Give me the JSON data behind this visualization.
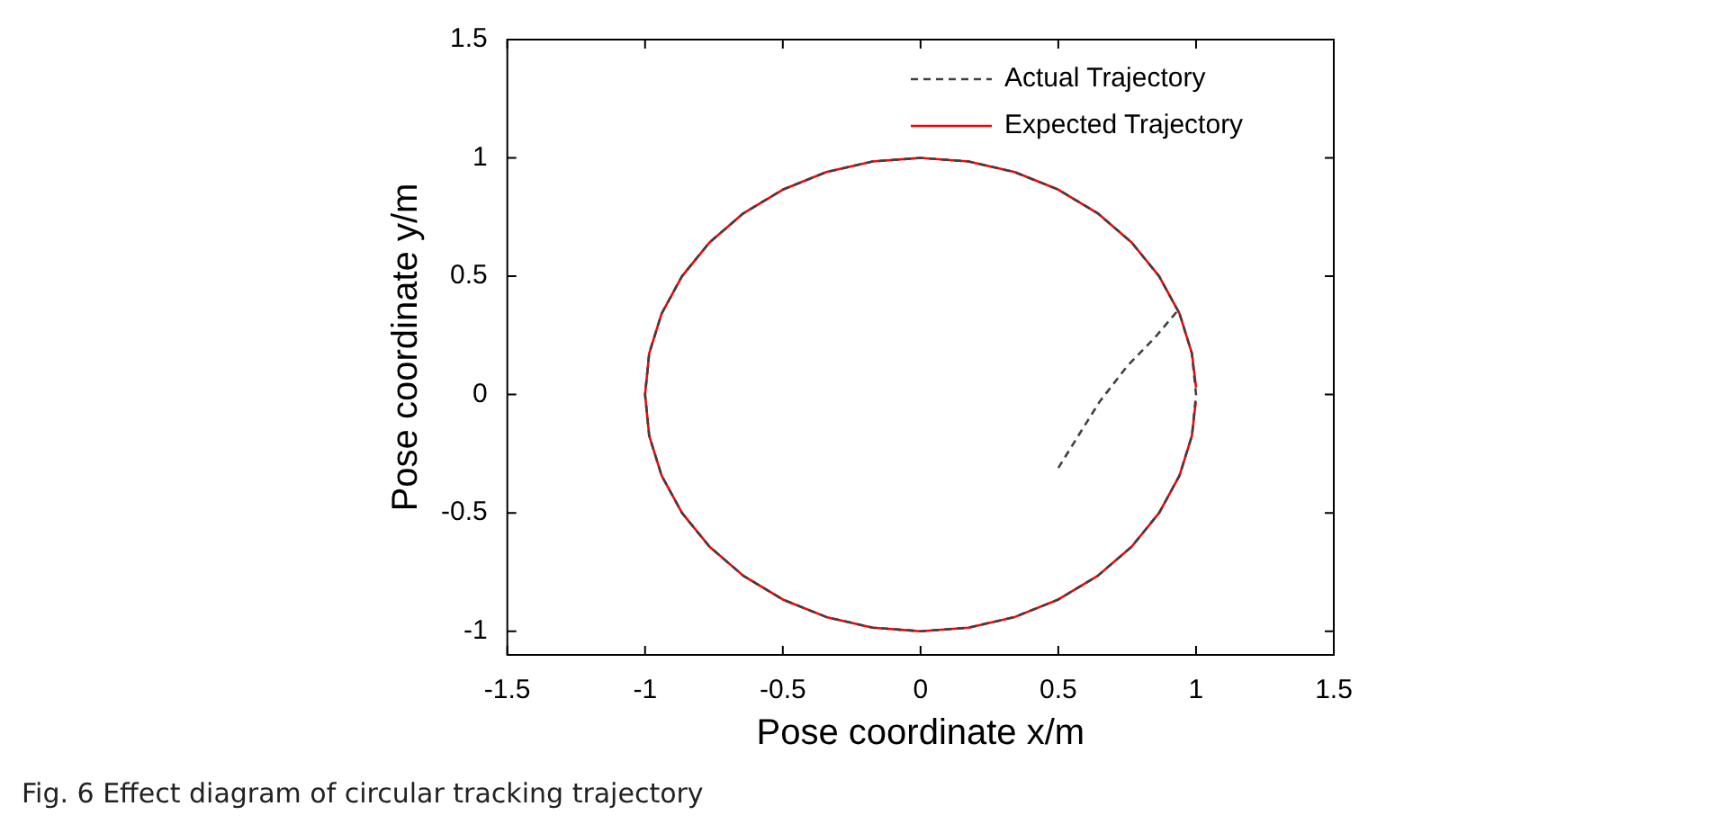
{
  "chart_data": {
    "type": "line",
    "xlabel": "Pose coordinate x/m",
    "ylabel": "Pose coordinate y/m",
    "xlim": [
      -1.5,
      1.5
    ],
    "xticks": [
      -1.5,
      -1,
      -0.5,
      0,
      0.5,
      1,
      1.5
    ],
    "ylim": [
      -1.1,
      1.5
    ],
    "yticks": [
      -1,
      -0.5,
      0,
      0.5,
      1,
      1.5
    ],
    "legend": "top right",
    "annotations": [
      "Fig. 6  Effect diagram of circular tracking trajectory"
    ],
    "series": [
      {
        "name": "Actual Trajectory",
        "color": "#404040",
        "line_style": "dashed",
        "x": [
          0.5,
          0.58,
          0.65,
          0.75,
          0.85,
          0.93,
          0.94,
          0.866,
          0.766,
          0.643,
          0.5,
          0.342,
          0.174,
          0,
          -0.174,
          -0.342,
          -0.5,
          -0.643,
          -0.766,
          -0.866,
          -0.94,
          -0.985,
          -1,
          -0.985,
          -0.94,
          -0.866,
          -0.766,
          -0.643,
          -0.5,
          -0.342,
          -0.174,
          0,
          0.174,
          0.342,
          0.5,
          0.643,
          0.766,
          0.866,
          0.94,
          0.985,
          1,
          0.985,
          0.94
        ],
        "values": [
          -0.31,
          -0.16,
          -0.03,
          0.12,
          0.24,
          0.35,
          0.342,
          0.5,
          0.643,
          0.766,
          0.866,
          0.94,
          0.985,
          1,
          0.985,
          0.94,
          0.866,
          0.766,
          0.643,
          0.5,
          0.342,
          0.174,
          0,
          -0.174,
          -0.342,
          -0.5,
          -0.643,
          -0.766,
          -0.866,
          -0.94,
          -0.985,
          -1,
          -0.985,
          -0.94,
          -0.866,
          -0.766,
          -0.643,
          -0.5,
          -0.342,
          -0.174,
          0,
          0.174,
          0.342
        ]
      },
      {
        "name": "Expected Trajectory",
        "color": "#ff0000",
        "line_style": "solid",
        "x": [
          1,
          0.985,
          0.94,
          0.866,
          0.766,
          0.643,
          0.5,
          0.342,
          0.174,
          0,
          -0.174,
          -0.342,
          -0.5,
          -0.643,
          -0.766,
          -0.866,
          -0.94,
          -0.985,
          -1,
          -0.985,
          -0.94,
          -0.866,
          -0.766,
          -0.643,
          -0.5,
          -0.342,
          -0.174,
          0,
          0.174,
          0.342,
          0.5,
          0.643,
          0.766,
          0.866,
          0.94,
          0.985,
          0.999
        ],
        "values": [
          0.03,
          0.174,
          0.342,
          0.5,
          0.643,
          0.766,
          0.866,
          0.94,
          0.985,
          1,
          0.985,
          0.94,
          0.866,
          0.766,
          0.643,
          0.5,
          0.342,
          0.174,
          0,
          -0.174,
          -0.342,
          -0.5,
          -0.643,
          -0.766,
          -0.866,
          -0.94,
          -0.985,
          -1,
          -0.985,
          -0.94,
          -0.866,
          -0.766,
          -0.643,
          -0.5,
          -0.342,
          -0.174,
          -0.03
        ]
      }
    ]
  }
}
